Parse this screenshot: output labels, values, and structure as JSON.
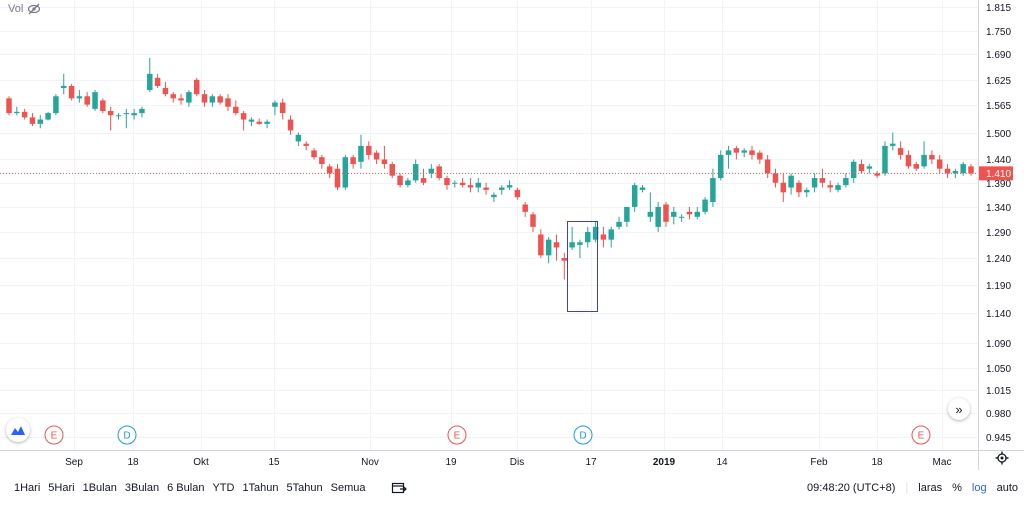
{
  "volume_label": "Vol",
  "chart_data": {
    "type": "candlestick",
    "scale": "log",
    "y_ticks": [
      "1.815",
      "1.750",
      "1.690",
      "1.625",
      "1.565",
      "1.500",
      "1.440",
      "1.390",
      "1.340",
      "1.290",
      "1.240",
      "1.190",
      "1.140",
      "1.090",
      "1.050",
      "1.015",
      "0.980",
      "0.945"
    ],
    "y_tick_values": [
      1815,
      1750,
      1690,
      1625,
      1565,
      1500,
      1440,
      1390,
      1340,
      1290,
      1240,
      1190,
      1140,
      1090,
      1050,
      1015,
      980,
      945
    ],
    "x_labels": [
      "Sep",
      "18",
      "Okt",
      "15",
      "Nov",
      "19",
      "Dis",
      "17",
      "2019",
      "14",
      "Feb",
      "18",
      "Mac"
    ],
    "x_label_bold": "2019",
    "last_price": "1.410",
    "last_price_value": 1410,
    "events": [
      {
        "type": "E",
        "x_label": "Sep"
      },
      {
        "type": "D",
        "x_label": "18"
      },
      {
        "type": "E",
        "x_label": "19"
      },
      {
        "type": "D",
        "x_label": "17"
      },
      {
        "type": "E",
        "x_label": "Mac"
      }
    ],
    "candles": [
      [
        1580,
        1585,
        1540,
        1545
      ],
      [
        1545,
        1560,
        1540,
        1548
      ],
      [
        1548,
        1555,
        1530,
        1535
      ],
      [
        1535,
        1545,
        1515,
        1520
      ],
      [
        1520,
        1540,
        1510,
        1530
      ],
      [
        1530,
        1548,
        1528,
        1545
      ],
      [
        1545,
        1590,
        1540,
        1585
      ],
      [
        1605,
        1640,
        1590,
        1610
      ],
      [
        1610,
        1615,
        1575,
        1580
      ],
      [
        1580,
        1600,
        1570,
        1585
      ],
      [
        1585,
        1595,
        1560,
        1565
      ],
      [
        1555,
        1600,
        1550,
        1595
      ],
      [
        1575,
        1580,
        1545,
        1550
      ],
      [
        1550,
        1560,
        1505,
        1540
      ],
      [
        1540,
        1545,
        1530,
        1540
      ],
      [
        1545,
        1555,
        1510,
        1545
      ],
      [
        1540,
        1555,
        1530,
        1545
      ],
      [
        1545,
        1560,
        1535,
        1555
      ],
      [
        1600,
        1680,
        1595,
        1640
      ],
      [
        1630,
        1640,
        1605,
        1610
      ],
      [
        1605,
        1620,
        1585,
        1590
      ],
      [
        1590,
        1595,
        1570,
        1580
      ],
      [
        1580,
        1590,
        1565,
        1575
      ],
      [
        1570,
        1600,
        1560,
        1595
      ],
      [
        1625,
        1630,
        1585,
        1590
      ],
      [
        1590,
        1600,
        1560,
        1570
      ],
      [
        1570,
        1590,
        1560,
        1585
      ],
      [
        1585,
        1590,
        1565,
        1570
      ],
      [
        1580,
        1590,
        1550,
        1560
      ],
      [
        1560,
        1575,
        1540,
        1545
      ],
      [
        1545,
        1550,
        1505,
        1530
      ],
      [
        1525,
        1535,
        1515,
        1530
      ],
      [
        1525,
        1532,
        1518,
        1520
      ],
      [
        1520,
        1530,
        1510,
        1525
      ],
      [
        1560,
        1575,
        1540,
        1570
      ],
      [
        1570,
        1580,
        1530,
        1545
      ],
      [
        1530,
        1540,
        1495,
        1505
      ],
      [
        1480,
        1500,
        1470,
        1495
      ],
      [
        1475,
        1480,
        1460,
        1470
      ],
      [
        1460,
        1465,
        1440,
        1445
      ],
      [
        1445,
        1450,
        1420,
        1430
      ],
      [
        1425,
        1430,
        1400,
        1410
      ],
      [
        1420,
        1430,
        1375,
        1380
      ],
      [
        1380,
        1450,
        1375,
        1445
      ],
      [
        1445,
        1450,
        1420,
        1430
      ],
      [
        1435,
        1495,
        1420,
        1470
      ],
      [
        1470,
        1480,
        1440,
        1450
      ],
      [
        1455,
        1460,
        1430,
        1440
      ],
      [
        1440,
        1470,
        1420,
        1430
      ],
      [
        1430,
        1435,
        1400,
        1405
      ],
      [
        1405,
        1410,
        1380,
        1385
      ],
      [
        1385,
        1400,
        1380,
        1395
      ],
      [
        1395,
        1440,
        1390,
        1430
      ],
      [
        1400,
        1420,
        1385,
        1390
      ],
      [
        1410,
        1430,
        1400,
        1420
      ],
      [
        1425,
        1430,
        1395,
        1400
      ],
      [
        1400,
        1405,
        1375,
        1385
      ],
      [
        1390,
        1395,
        1380,
        1390
      ],
      [
        1390,
        1400,
        1380,
        1385
      ],
      [
        1385,
        1400,
        1370,
        1380
      ],
      [
        1380,
        1400,
        1370,
        1390
      ],
      [
        1380,
        1390,
        1365,
        1375
      ],
      [
        1360,
        1370,
        1350,
        1365
      ],
      [
        1375,
        1385,
        1365,
        1380
      ],
      [
        1380,
        1395,
        1375,
        1385
      ],
      [
        1375,
        1380,
        1355,
        1360
      ],
      [
        1345,
        1350,
        1320,
        1330
      ],
      [
        1325,
        1330,
        1290,
        1300
      ],
      [
        1285,
        1295,
        1240,
        1245
      ],
      [
        1245,
        1280,
        1230,
        1275
      ],
      [
        1270,
        1285,
        1235,
        1260
      ],
      [
        1240,
        1250,
        1200,
        1235
      ],
      [
        1260,
        1300,
        1255,
        1270
      ],
      [
        1265,
        1275,
        1240,
        1270
      ],
      [
        1270,
        1300,
        1260,
        1290
      ],
      [
        1275,
        1310,
        1270,
        1300
      ],
      [
        1285,
        1300,
        1260,
        1275
      ],
      [
        1275,
        1300,
        1260,
        1295
      ],
      [
        1300,
        1320,
        1295,
        1310
      ],
      [
        1310,
        1340,
        1300,
        1340
      ],
      [
        1340,
        1390,
        1330,
        1385
      ],
      [
        1375,
        1385,
        1370,
        1380
      ],
      [
        1320,
        1370,
        1310,
        1330
      ],
      [
        1300,
        1350,
        1290,
        1340
      ],
      [
        1345,
        1350,
        1300,
        1310
      ],
      [
        1320,
        1340,
        1305,
        1330
      ],
      [
        1320,
        1325,
        1310,
        1320
      ],
      [
        1330,
        1340,
        1315,
        1325
      ],
      [
        1320,
        1340,
        1315,
        1330
      ],
      [
        1330,
        1360,
        1325,
        1355
      ],
      [
        1350,
        1420,
        1340,
        1400
      ],
      [
        1400,
        1460,
        1395,
        1450
      ],
      [
        1450,
        1470,
        1420,
        1460
      ],
      [
        1465,
        1470,
        1440,
        1455
      ],
      [
        1455,
        1465,
        1445,
        1460
      ],
      [
        1460,
        1470,
        1440,
        1450
      ],
      [
        1455,
        1460,
        1430,
        1440
      ],
      [
        1440,
        1450,
        1400,
        1410
      ],
      [
        1410,
        1420,
        1380,
        1390
      ],
      [
        1390,
        1410,
        1350,
        1370
      ],
      [
        1380,
        1410,
        1365,
        1405
      ],
      [
        1390,
        1395,
        1360,
        1370
      ],
      [
        1370,
        1380,
        1360,
        1375
      ],
      [
        1380,
        1410,
        1370,
        1400
      ],
      [
        1400,
        1420,
        1380,
        1390
      ],
      [
        1385,
        1395,
        1370,
        1380
      ],
      [
        1375,
        1390,
        1370,
        1385
      ],
      [
        1385,
        1410,
        1380,
        1400
      ],
      [
        1400,
        1440,
        1390,
        1435
      ],
      [
        1430,
        1440,
        1410,
        1415
      ],
      [
        1420,
        1430,
        1410,
        1425
      ],
      [
        1410,
        1415,
        1400,
        1405
      ],
      [
        1410,
        1480,
        1405,
        1470
      ],
      [
        1470,
        1500,
        1460,
        1475
      ],
      [
        1465,
        1480,
        1440,
        1450
      ],
      [
        1450,
        1460,
        1420,
        1425
      ],
      [
        1430,
        1435,
        1415,
        1420
      ],
      [
        1425,
        1480,
        1420,
        1450
      ],
      [
        1450,
        1460,
        1430,
        1440
      ],
      [
        1440,
        1450,
        1410,
        1420
      ],
      [
        1420,
        1430,
        1400,
        1410
      ],
      [
        1410,
        1420,
        1400,
        1415
      ],
      [
        1410,
        1435,
        1405,
        1430
      ],
      [
        1425,
        1430,
        1405,
        1410
      ]
    ]
  }
}
